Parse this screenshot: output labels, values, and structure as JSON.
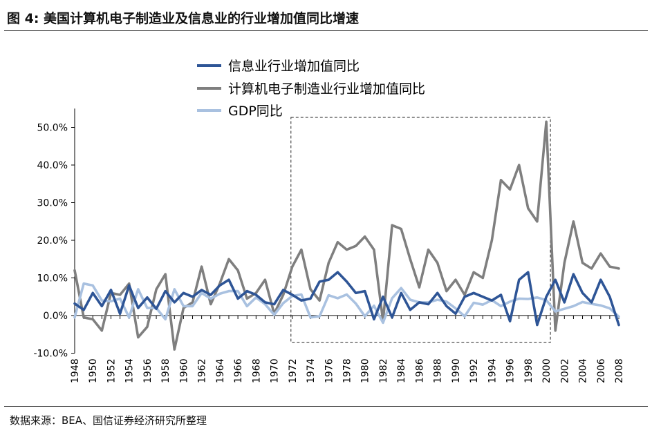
{
  "title": "图 4:  美国计算机电子制造业及信息业的行业增加值同比增速",
  "source": "数据来源：BEA、国信证券经济研究所整理",
  "colors": {
    "info": "#2e5596",
    "computer": "#7f7f7f",
    "gdp": "#a9c1e0"
  },
  "chart_data": {
    "type": "line",
    "x": [
      1948,
      1949,
      1950,
      1951,
      1952,
      1953,
      1954,
      1955,
      1956,
      1957,
      1958,
      1959,
      1960,
      1961,
      1962,
      1963,
      1964,
      1965,
      1966,
      1967,
      1968,
      1969,
      1970,
      1971,
      1972,
      1973,
      1974,
      1975,
      1976,
      1977,
      1978,
      1979,
      1980,
      1981,
      1982,
      1983,
      1984,
      1985,
      1986,
      1987,
      1988,
      1989,
      1990,
      1991,
      1992,
      1993,
      1994,
      1995,
      1996,
      1997,
      1998,
      1999,
      2000,
      2001,
      2002,
      2003,
      2004,
      2005,
      2006,
      2007,
      2008
    ],
    "xticks": [
      "1948",
      "1950",
      "1952",
      "1954",
      "1956",
      "1958",
      "1960",
      "1962",
      "1964",
      "1966",
      "1968",
      "1970",
      "1972",
      "1974",
      "1976",
      "1978",
      "1980",
      "1982",
      "1984",
      "1986",
      "1988",
      "1990",
      "1992",
      "1994",
      "1996",
      "1998",
      "2000",
      "2002",
      "2004",
      "2006",
      "2008"
    ],
    "yticks": [
      "50.0%",
      "40.0%",
      "30.0%",
      "20.0%",
      "10.0%",
      "0.0%",
      "-10.0%"
    ],
    "ylim": [
      -10,
      55
    ],
    "series": [
      {
        "name": "信息业行业增加值同比",
        "color": "#2e5596",
        "values": [
          3.2,
          1.5,
          6.0,
          2.5,
          6.8,
          0.5,
          8.0,
          2.0,
          4.8,
          1.8,
          6.5,
          3.5,
          6.0,
          5.0,
          6.8,
          5.5,
          8.0,
          9.5,
          4.5,
          6.5,
          5.5,
          3.5,
          3.0,
          6.8,
          5.5,
          4.0,
          4.5,
          9.0,
          9.5,
          11.5,
          9.0,
          6.0,
          6.5,
          -1.0,
          5.0,
          -0.5,
          6.0,
          1.5,
          3.5,
          3.0,
          6.0,
          2.5,
          0.5,
          5.0,
          6.0,
          5.0,
          4.0,
          5.5,
          -1.5,
          9.5,
          11.5,
          -2.5,
          5.0,
          9.5,
          3.5,
          11.0,
          6.0,
          3.5,
          9.5,
          5.0,
          -2.5
        ]
      },
      {
        "name": "计算机电子制造业行业增加值同比",
        "color": "#7f7f7f",
        "values": [
          12.0,
          -0.5,
          -1.0,
          -4.0,
          6.0,
          5.5,
          8.5,
          -5.8,
          -3.0,
          7.0,
          11.0,
          -9.0,
          2.0,
          3.5,
          13.0,
          3.0,
          8.5,
          15.0,
          12.0,
          4.5,
          6.0,
          9.5,
          0.5,
          5.5,
          13.0,
          17.5,
          7.0,
          4.0,
          14.0,
          19.5,
          17.5,
          18.5,
          21.0,
          17.5,
          -1.5,
          24.0,
          23.0,
          15.0,
          7.5,
          17.5,
          14.0,
          6.5,
          9.5,
          5.5,
          11.5,
          10.0,
          20.0,
          36.0,
          33.5,
          40.0,
          28.5,
          25.0,
          51.5,
          -4.0,
          14.0,
          25.0,
          14.0,
          12.5,
          16.5,
          13.0,
          12.5
        ]
      },
      {
        "name": "GDP同比",
        "color": "#a9c1e0",
        "values": [
          -0.5,
          8.5,
          8.0,
          4.0,
          3.8,
          4.5,
          -0.5,
          7.0,
          2.0,
          2.0,
          -1.0,
          7.0,
          2.5,
          2.5,
          6.0,
          4.5,
          5.8,
          6.5,
          6.5,
          2.5,
          4.8,
          3.0,
          0.2,
          3.3,
          5.2,
          5.6,
          -0.5,
          -0.2,
          5.4,
          4.6,
          5.6,
          3.2,
          -0.2,
          2.6,
          -1.9,
          4.6,
          7.3,
          4.2,
          3.5,
          3.5,
          4.2,
          3.7,
          1.9,
          -0.2,
          3.4,
          2.9,
          4.1,
          2.5,
          3.7,
          4.5,
          4.4,
          4.8,
          4.1,
          1.1,
          1.8,
          2.5,
          3.6,
          3.1,
          2.7,
          1.9,
          -0.3
        ]
      }
    ],
    "legend": "top-left",
    "annotation": "dashed box 1972–2000"
  }
}
